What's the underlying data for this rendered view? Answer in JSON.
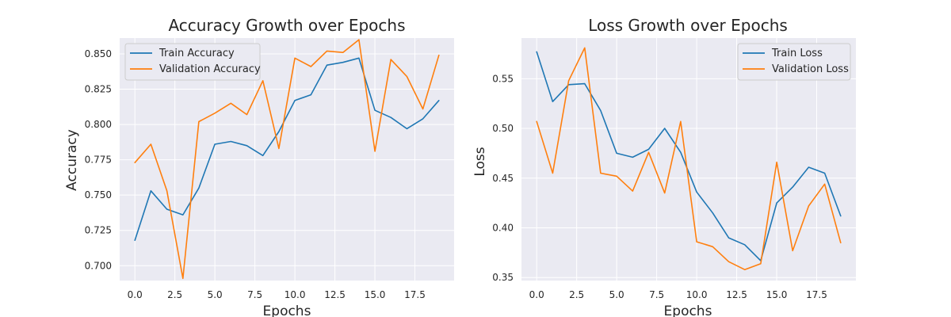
{
  "chart_data": [
    {
      "type": "line",
      "title": "Accuracy Growth over Epochs",
      "xlabel": "Epochs",
      "ylabel": "Accuracy",
      "xlim": [
        -0.95,
        19.95
      ],
      "ylim": [
        0.6895,
        0.8612
      ],
      "x_ticks": [
        0,
        2.5,
        5,
        7.5,
        10,
        12.5,
        15,
        17.5
      ],
      "x_tick_labels": [
        "0.0",
        "2.5",
        "5.0",
        "7.5",
        "10.0",
        "12.5",
        "15.0",
        "17.5"
      ],
      "y_ticks": [
        0.7,
        0.725,
        0.75,
        0.775,
        0.8,
        0.825,
        0.85
      ],
      "y_tick_labels": [
        "0.700",
        "0.725",
        "0.750",
        "0.775",
        "0.800",
        "0.825",
        "0.850"
      ],
      "grid": true,
      "legend_position": "top-left",
      "x": [
        0,
        1,
        2,
        3,
        4,
        5,
        6,
        7,
        8,
        9,
        10,
        11,
        12,
        13,
        14,
        15,
        16,
        17,
        18,
        19
      ],
      "series": [
        {
          "name": "Train Accuracy",
          "color": "#1f77b4",
          "values": [
            0.718,
            0.753,
            0.74,
            0.736,
            0.755,
            0.786,
            0.788,
            0.785,
            0.778,
            0.795,
            0.817,
            0.821,
            0.842,
            0.844,
            0.847,
            0.81,
            0.805,
            0.797,
            0.804,
            0.817
          ]
        },
        {
          "name": "Validation Accuracy",
          "color": "#ff7f0e",
          "values": [
            0.773,
            0.786,
            0.753,
            0.691,
            0.802,
            0.808,
            0.815,
            0.807,
            0.831,
            0.783,
            0.847,
            0.841,
            0.852,
            0.851,
            0.86,
            0.781,
            0.846,
            0.834,
            0.811,
            0.849
          ]
        }
      ]
    },
    {
      "type": "line",
      "title": "Loss Growth over Epochs",
      "xlabel": "Epochs",
      "ylabel": "Loss",
      "xlim": [
        -0.95,
        19.95
      ],
      "ylim": [
        0.347,
        0.5909
      ],
      "x_ticks": [
        0,
        2.5,
        5,
        7.5,
        10,
        12.5,
        15,
        17.5
      ],
      "x_tick_labels": [
        "0.0",
        "2.5",
        "5.0",
        "7.5",
        "10.0",
        "12.5",
        "15.0",
        "17.5"
      ],
      "y_ticks": [
        0.35,
        0.4,
        0.45,
        0.5,
        0.55
      ],
      "y_tick_labels": [
        "0.35",
        "0.40",
        "0.45",
        "0.50",
        "0.55"
      ],
      "grid": true,
      "legend_position": "top-right",
      "x": [
        0,
        1,
        2,
        3,
        4,
        5,
        6,
        7,
        8,
        9,
        10,
        11,
        12,
        13,
        14,
        15,
        16,
        17,
        18,
        19
      ],
      "series": [
        {
          "name": "Train Loss",
          "color": "#1f77b4",
          "values": [
            0.577,
            0.527,
            0.544,
            0.545,
            0.518,
            0.475,
            0.471,
            0.479,
            0.5,
            0.476,
            0.436,
            0.415,
            0.39,
            0.383,
            0.367,
            0.425,
            0.441,
            0.461,
            0.455,
            0.412
          ]
        },
        {
          "name": "Validation Loss",
          "color": "#ff7f0e",
          "values": [
            0.507,
            0.455,
            0.548,
            0.581,
            0.455,
            0.452,
            0.437,
            0.476,
            0.435,
            0.507,
            0.386,
            0.381,
            0.366,
            0.358,
            0.364,
            0.466,
            0.377,
            0.422,
            0.444,
            0.385
          ]
        }
      ]
    }
  ]
}
